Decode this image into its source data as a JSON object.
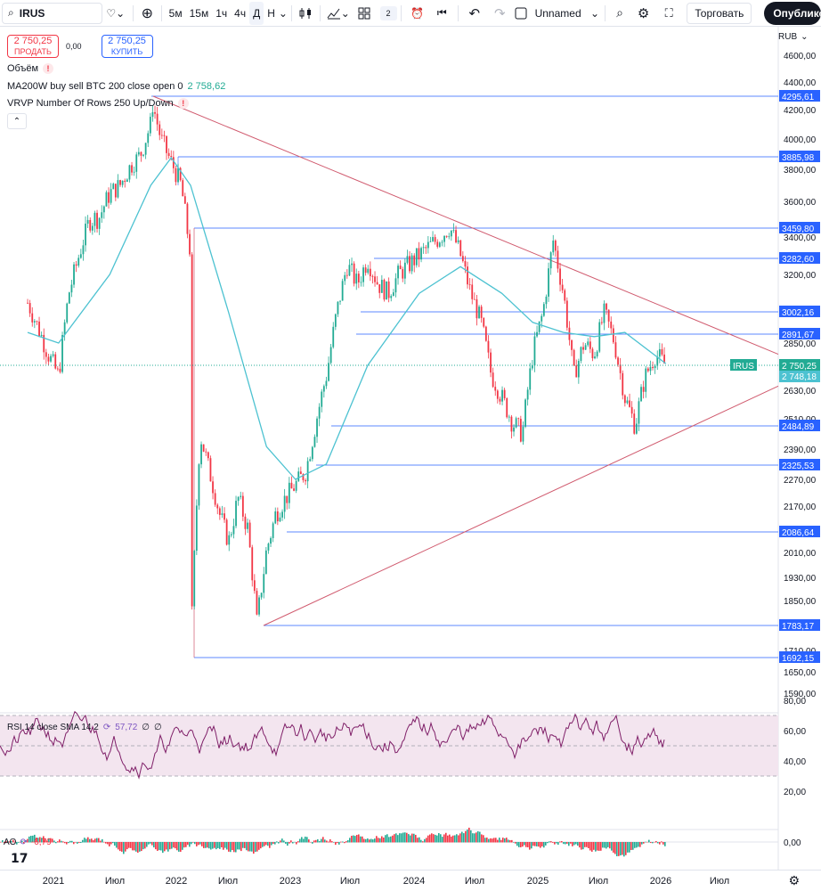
{
  "toolbar": {
    "symbol": "IRUS",
    "timeframes": [
      "5м",
      "15м",
      "1ч",
      "4ч",
      "Д",
      "Н"
    ],
    "active_timeframe": "Д",
    "layouts_count": "2",
    "layout_name": "Unnamed",
    "trade_label": "Торговать",
    "publish_label": "Опубликовать"
  },
  "order": {
    "sell_price": "2 750,25",
    "sell_label": "ПРОДАТЬ",
    "spread": "0,00",
    "buy_price": "2 750,25",
    "buy_label": "КУПИТЬ"
  },
  "legend": {
    "volume": "Объём",
    "ma": "MA200W buy sell BTC 200 close open 0",
    "ma_value": "2 758,62",
    "vrvp": "VRVP Number Of Rows 250 Up/Down",
    "warn": "!"
  },
  "currency": "RUB",
  "rsi_legend": {
    "label": "RSI 14 close SMA 14 2",
    "value": "57,72",
    "extra1": "∅",
    "extra2": "∅"
  },
  "ao_legend": {
    "label": "AO",
    "value": "-6,79"
  },
  "current_price": {
    "symbol": "IRUS",
    "price": "2 750,25",
    "ma_price": "2 748,18"
  },
  "colors": {
    "up": "#22ab94",
    "down": "#f23645",
    "ma": "#4dc2d1",
    "line": "#2962ff",
    "trend": "#d05a6e",
    "rsi": "#7f1f68",
    "rsi_band": "#f3e5ef"
  },
  "chart_data": [
    {
      "type": "candlestick",
      "title": "IRUS, Д",
      "x_ticks": [
        "2021",
        "Июл",
        "2022",
        "Июл",
        "2023",
        "Июл",
        "2024",
        "Июл",
        "2025",
        "Июл",
        "2026",
        "Июл"
      ],
      "y_ticks": [
        4600,
        4400,
        4200,
        4000,
        3800,
        3600,
        3400,
        3200,
        2850,
        2630,
        2510,
        2390,
        2270,
        2170,
        2010,
        1930,
        1850,
        1710,
        1650,
        1590
      ],
      "y_tick_labels": [
        "4600,00",
        "4400,00",
        "4200,00",
        "4000,00",
        "3800,00",
        "3600,00",
        "3400,00",
        "3200,00",
        "2850,00",
        "2630,00",
        "2510,00",
        "2390,00",
        "2270,00",
        "2170,00",
        "2010,00",
        "1930,00",
        "1850,00",
        "1710,00",
        "1650,00",
        "1590,00"
      ],
      "horizontal_levels": [
        4295.61,
        3885.98,
        3459.8,
        3282.6,
        3002.16,
        2891.67,
        2484.89,
        2325.53,
        2086.64,
        1783.17,
        1692.15
      ],
      "horizontal_level_labels": [
        "4295,61",
        "3885,98",
        "3459,80",
        "3282,60",
        "3002,16",
        "2891,67",
        "2484,89",
        "2325,53",
        "2086,64",
        "1783,17",
        "1692,15"
      ],
      "price_path": [
        [
          "2020-10",
          3050
        ],
        [
          "2020-12",
          2800
        ],
        [
          "2021-01",
          2700
        ],
        [
          "2021-02",
          3100
        ],
        [
          "2021-03",
          3300
        ],
        [
          "2021-04",
          3500
        ],
        [
          "2021-05",
          3520
        ],
        [
          "2021-06",
          3650
        ],
        [
          "2021-07",
          3700
        ],
        [
          "2021-08",
          3820
        ],
        [
          "2021-09",
          3900
        ],
        [
          "2021-10",
          4100
        ],
        [
          "2021-10",
          4295
        ],
        [
          "2021-11",
          4000
        ],
        [
          "2021-12",
          3850
        ],
        [
          "2022-01",
          3700
        ],
        [
          "2022-02",
          3300
        ],
        [
          "2022-02",
          1692
        ],
        [
          "2022-03",
          2450
        ],
        [
          "2022-04",
          2300
        ],
        [
          "2022-05",
          2150
        ],
        [
          "2022-06",
          2050
        ],
        [
          "2022-07",
          2200
        ],
        [
          "2022-08",
          2100
        ],
        [
          "2022-09",
          1783
        ],
        [
          "2022-10",
          2020
        ],
        [
          "2022-11",
          2150
        ],
        [
          "2022-12",
          2200
        ],
        [
          "2023-01",
          2250
        ],
        [
          "2023-02",
          2300
        ],
        [
          "2023-03",
          2500
        ],
        [
          "2023-04",
          2700
        ],
        [
          "2023-05",
          3000
        ],
        [
          "2023-06",
          3250
        ],
        [
          "2023-07",
          3150
        ],
        [
          "2023-08",
          3280
        ],
        [
          "2023-09",
          3150
        ],
        [
          "2023-10",
          3100
        ],
        [
          "2023-11",
          3200
        ],
        [
          "2023-12",
          3250
        ],
        [
          "2024-01",
          3300
        ],
        [
          "2024-02",
          3350
        ],
        [
          "2024-03",
          3400
        ],
        [
          "2024-04",
          3460
        ],
        [
          "2024-05",
          3300
        ],
        [
          "2024-06",
          3100
        ],
        [
          "2024-07",
          2950
        ],
        [
          "2024-08",
          2700
        ],
        [
          "2024-09",
          2600
        ],
        [
          "2024-10",
          2500
        ],
        [
          "2024-11",
          2450
        ],
        [
          "2024-12",
          2800
        ],
        [
          "2025-01",
          3000
        ],
        [
          "2025-02",
          3380
        ],
        [
          "2025-03",
          3100
        ],
        [
          "2025-04",
          2700
        ],
        [
          "2025-05",
          2850
        ],
        [
          "2025-06",
          2800
        ],
        [
          "2025-07",
          3000
        ],
        [
          "2025-08",
          2850
        ],
        [
          "2025-09",
          2600
        ],
        [
          "2025-10",
          2484
        ],
        [
          "2025-11",
          2700
        ],
        [
          "2025-12",
          2800
        ],
        [
          "2026-01",
          2750
        ]
      ],
      "ma_path": [
        [
          "2020-10",
          2900
        ],
        [
          "2021-01",
          2850
        ],
        [
          "2021-06",
          3200
        ],
        [
          "2021-10",
          3700
        ],
        [
          "2021-12",
          3880
        ],
        [
          "2022-02",
          3700
        ],
        [
          "2022-06",
          3000
        ],
        [
          "2022-10",
          2400
        ],
        [
          "2023-01",
          2270
        ],
        [
          "2023-04",
          2330
        ],
        [
          "2023-08",
          2750
        ],
        [
          "2024-01",
          3100
        ],
        [
          "2024-05",
          3240
        ],
        [
          "2024-09",
          3100
        ],
        [
          "2024-12",
          2950
        ],
        [
          "2025-03",
          2900
        ],
        [
          "2025-06",
          2880
        ],
        [
          "2025-09",
          2900
        ],
        [
          "2026-01",
          2758
        ]
      ]
    },
    {
      "type": "line",
      "title": "RSI 14 close SMA 14 2",
      "y_ticks": [
        80,
        60,
        40,
        20
      ],
      "y_tick_labels": [
        "80,00",
        "60,00",
        "40,00",
        "20,00"
      ],
      "band": [
        30,
        70
      ],
      "last_value": 57.72
    },
    {
      "type": "bar",
      "title": "AO",
      "y_ticks": [
        0
      ],
      "y_tick_labels": [
        "0,00"
      ],
      "last_value": -6.79
    }
  ]
}
